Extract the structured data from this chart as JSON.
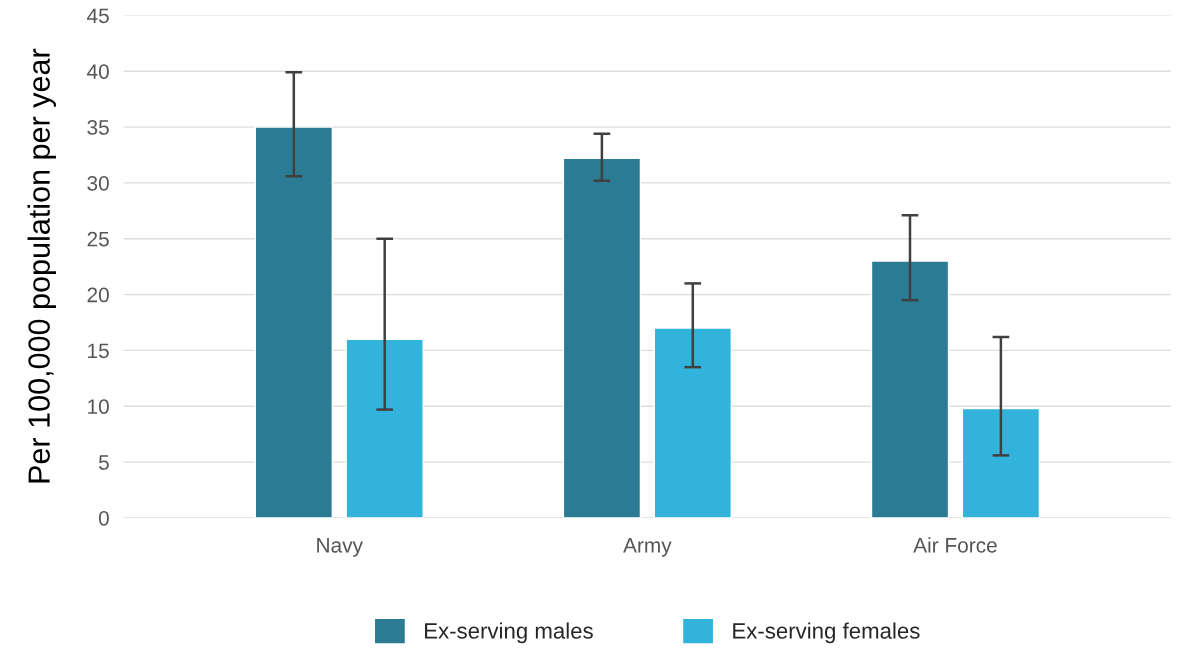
{
  "chart_data": {
    "type": "bar",
    "ylabel": "Per 100,000 population per year",
    "categories": [
      "Navy",
      "Army",
      "Air Force"
    ],
    "series": [
      {
        "name": "Ex-serving males",
        "color": "#2a7b93",
        "values": [
          35,
          32.2,
          23
        ],
        "errors": [
          [
            30.6,
            39.9
          ],
          [
            30.2,
            34.4
          ],
          [
            19.5,
            27.1
          ]
        ]
      },
      {
        "name": "Ex-serving females",
        "color": "#31b3dc",
        "values": [
          16,
          17,
          9.8
        ],
        "errors": [
          [
            9.7,
            25
          ],
          [
            13.5,
            21
          ],
          [
            5.6,
            16.2
          ]
        ]
      }
    ],
    "ylim": [
      0,
      45
    ],
    "yticks": [
      0,
      5,
      10,
      15,
      20,
      25,
      30,
      35,
      40,
      45
    ],
    "grid": "y",
    "legend": "bottom"
  }
}
